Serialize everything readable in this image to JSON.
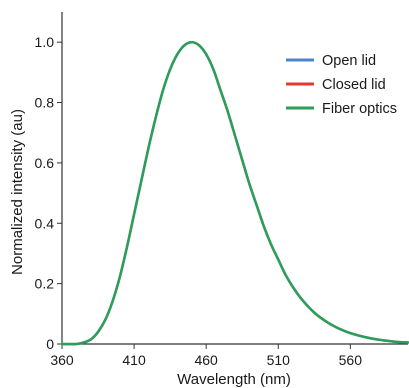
{
  "chart_data": {
    "type": "line",
    "title": "",
    "xlabel": "Wavelength (nm)",
    "ylabel": "Normalized intensity (au)",
    "xlim": [
      360,
      600
    ],
    "ylim": [
      0,
      1.1
    ],
    "xticks": [
      360,
      410,
      460,
      510,
      560
    ],
    "yticks": [
      0,
      0.2,
      0.4,
      0.6,
      0.8,
      1.0
    ],
    "xtick_labels": [
      "360",
      "410",
      "460",
      "510",
      "560"
    ],
    "ytick_labels": [
      "0",
      "0.2",
      "0.4",
      "0.6",
      "0.8",
      "1.0"
    ],
    "grid": false,
    "legend_position": "top-right",
    "x": [
      360,
      370,
      375,
      380,
      385,
      390,
      395,
      400,
      405,
      410,
      415,
      420,
      425,
      430,
      435,
      440,
      445,
      450,
      455,
      460,
      465,
      470,
      475,
      480,
      485,
      490,
      495,
      500,
      505,
      510,
      515,
      520,
      525,
      530,
      535,
      540,
      545,
      550,
      555,
      560,
      565,
      570,
      575,
      580,
      585,
      590,
      595,
      600
    ],
    "series": [
      {
        "name": "Open lid",
        "color": "#4a86c8",
        "values": [
          0.0,
          0.0,
          0.005,
          0.015,
          0.04,
          0.08,
          0.14,
          0.22,
          0.32,
          0.43,
          0.54,
          0.65,
          0.75,
          0.84,
          0.91,
          0.96,
          0.99,
          1.0,
          0.99,
          0.96,
          0.91,
          0.84,
          0.77,
          0.69,
          0.61,
          0.53,
          0.46,
          0.39,
          0.33,
          0.28,
          0.23,
          0.19,
          0.156,
          0.128,
          0.104,
          0.085,
          0.069,
          0.056,
          0.045,
          0.036,
          0.029,
          0.023,
          0.018,
          0.014,
          0.011,
          0.008,
          0.006,
          0.005
        ]
      },
      {
        "name": "Closed lid",
        "color": "#e03b2f",
        "values": [
          0.0,
          0.0,
          0.005,
          0.015,
          0.04,
          0.08,
          0.14,
          0.22,
          0.32,
          0.43,
          0.54,
          0.65,
          0.75,
          0.84,
          0.91,
          0.96,
          0.99,
          1.0,
          0.99,
          0.96,
          0.91,
          0.84,
          0.77,
          0.69,
          0.61,
          0.53,
          0.46,
          0.39,
          0.33,
          0.28,
          0.23,
          0.19,
          0.156,
          0.128,
          0.104,
          0.085,
          0.069,
          0.056,
          0.045,
          0.036,
          0.029,
          0.023,
          0.018,
          0.014,
          0.011,
          0.008,
          0.006,
          0.005
        ]
      },
      {
        "name": "Fiber optics",
        "color": "#2e9c5a",
        "values": [
          0.0,
          0.0,
          0.005,
          0.015,
          0.04,
          0.08,
          0.14,
          0.22,
          0.32,
          0.43,
          0.54,
          0.65,
          0.75,
          0.84,
          0.91,
          0.96,
          0.99,
          1.0,
          0.99,
          0.96,
          0.91,
          0.84,
          0.77,
          0.69,
          0.61,
          0.53,
          0.46,
          0.39,
          0.33,
          0.28,
          0.23,
          0.19,
          0.156,
          0.128,
          0.104,
          0.085,
          0.069,
          0.056,
          0.045,
          0.036,
          0.029,
          0.023,
          0.018,
          0.014,
          0.011,
          0.008,
          0.006,
          0.005
        ]
      }
    ]
  }
}
